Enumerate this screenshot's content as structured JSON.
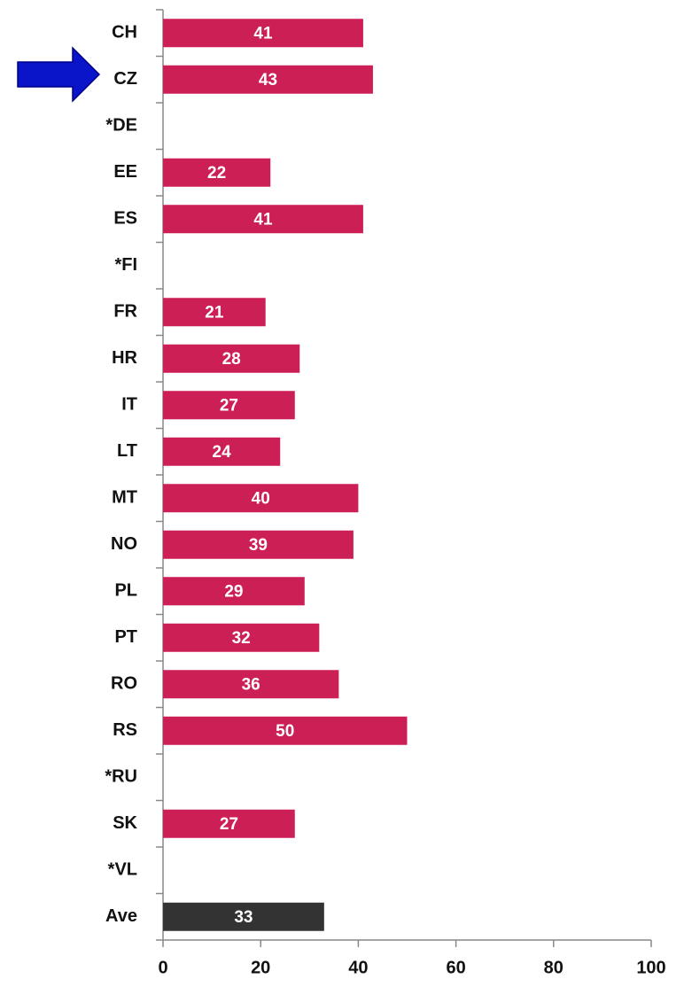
{
  "chart_data": {
    "type": "bar",
    "orientation": "horizontal",
    "categories": [
      "CH",
      "CZ",
      "*DE",
      "EE",
      "ES",
      "*FI",
      "FR",
      "HR",
      "IT",
      "LT",
      "MT",
      "NO",
      "PL",
      "PT",
      "RO",
      "RS",
      "*RU",
      "SK",
      "*VL",
      "Ave"
    ],
    "values": [
      41,
      43,
      null,
      22,
      41,
      null,
      21,
      28,
      27,
      24,
      40,
      39,
      29,
      32,
      36,
      50,
      null,
      27,
      null,
      33
    ],
    "colors": [
      "#cc1f56",
      "#cc1f56",
      null,
      "#cc1f56",
      "#cc1f56",
      null,
      "#cc1f56",
      "#cc1f56",
      "#cc1f56",
      "#cc1f56",
      "#cc1f56",
      "#cc1f56",
      "#cc1f56",
      "#cc1f56",
      "#cc1f56",
      "#cc1f56",
      null,
      "#cc1f56",
      null,
      "#333333"
    ],
    "xlim": [
      0,
      100
    ],
    "xticks": [
      0,
      20,
      40,
      60,
      80,
      100
    ]
  }
}
